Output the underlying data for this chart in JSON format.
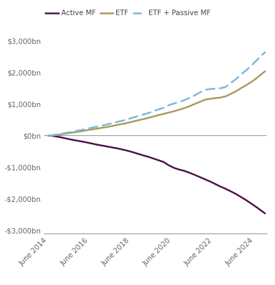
{
  "yticks": [
    -3000,
    -2000,
    -1000,
    0,
    1000,
    2000,
    3000
  ],
  "ytick_labels": [
    "-$3,000bn",
    "-$2,000bn",
    "-$1,000bn",
    "$0bn",
    "$1,000bn",
    "$2,000bn",
    "$3,000bn"
  ],
  "xtick_labels": [
    "June 2014",
    "June 2016",
    "June 2018",
    "June 2020",
    "June 2022",
    "June 2024"
  ],
  "xtick_positions": [
    2014.417,
    2016.417,
    2018.417,
    2020.417,
    2022.417,
    2024.417
  ],
  "active_mf_color": "#4B1248",
  "etf_color": "#A89A5A",
  "etf_passive_color": "#7AB8D8",
  "legend_labels": [
    "Active MF",
    "ETF",
    "ETF + Passive MF"
  ],
  "ylim": [
    -3100,
    3200
  ],
  "xlim": [
    2014.2,
    2025.0
  ],
  "active_mf_data": {
    "x": [
      2014.417,
      2014.583,
      2014.75,
      2015.0,
      2015.25,
      2015.5,
      2015.75,
      2016.0,
      2016.25,
      2016.5,
      2016.75,
      2017.0,
      2017.25,
      2017.5,
      2017.75,
      2018.0,
      2018.25,
      2018.5,
      2018.75,
      2019.0,
      2019.25,
      2019.5,
      2019.75,
      2020.0,
      2020.25,
      2020.5,
      2020.75,
      2021.0,
      2021.25,
      2021.5,
      2021.75,
      2022.0,
      2022.25,
      2022.5,
      2022.75,
      2023.0,
      2023.25,
      2023.5,
      2023.75,
      2024.0,
      2024.25,
      2024.5,
      2024.75,
      2024.917
    ],
    "y": [
      0,
      -8,
      -25,
      -55,
      -90,
      -125,
      -155,
      -185,
      -215,
      -250,
      -285,
      -315,
      -345,
      -375,
      -405,
      -440,
      -480,
      -525,
      -575,
      -625,
      -670,
      -725,
      -780,
      -835,
      -940,
      -1020,
      -1075,
      -1115,
      -1175,
      -1240,
      -1310,
      -1380,
      -1450,
      -1530,
      -1610,
      -1680,
      -1760,
      -1845,
      -1940,
      -2040,
      -2150,
      -2260,
      -2380,
      -2460
    ]
  },
  "etf_data": {
    "x": [
      2014.417,
      2014.583,
      2014.75,
      2015.0,
      2015.25,
      2015.5,
      2015.75,
      2016.0,
      2016.25,
      2016.5,
      2016.75,
      2017.0,
      2017.25,
      2017.5,
      2017.75,
      2018.0,
      2018.25,
      2018.5,
      2018.75,
      2019.0,
      2019.25,
      2019.5,
      2019.75,
      2020.0,
      2020.25,
      2020.5,
      2020.75,
      2021.0,
      2021.25,
      2021.5,
      2021.75,
      2022.0,
      2022.25,
      2022.5,
      2022.75,
      2023.0,
      2023.25,
      2023.5,
      2023.75,
      2024.0,
      2024.25,
      2024.5,
      2024.75,
      2024.917
    ],
    "y": [
      0,
      4,
      15,
      35,
      60,
      85,
      110,
      135,
      165,
      190,
      215,
      245,
      270,
      300,
      335,
      365,
      400,
      440,
      480,
      515,
      555,
      600,
      645,
      685,
      725,
      765,
      815,
      865,
      925,
      995,
      1060,
      1130,
      1160,
      1180,
      1200,
      1235,
      1315,
      1395,
      1495,
      1590,
      1690,
      1810,
      1940,
      2030
    ]
  },
  "etf_passive_data": {
    "x": [
      2014.417,
      2014.583,
      2014.75,
      2015.0,
      2015.25,
      2015.5,
      2015.75,
      2016.0,
      2016.25,
      2016.5,
      2016.75,
      2017.0,
      2017.25,
      2017.5,
      2017.75,
      2018.0,
      2018.25,
      2018.5,
      2018.75,
      2019.0,
      2019.25,
      2019.5,
      2019.75,
      2020.0,
      2020.25,
      2020.5,
      2020.75,
      2021.0,
      2021.25,
      2021.5,
      2021.75,
      2022.0,
      2022.25,
      2022.5,
      2022.75,
      2023.0,
      2023.25,
      2023.5,
      2023.75,
      2024.0,
      2024.25,
      2024.5,
      2024.75,
      2024.917
    ],
    "y": [
      0,
      6,
      22,
      48,
      80,
      115,
      145,
      175,
      210,
      245,
      278,
      315,
      348,
      388,
      430,
      468,
      515,
      565,
      615,
      660,
      708,
      768,
      825,
      875,
      960,
      1010,
      1060,
      1115,
      1185,
      1268,
      1358,
      1440,
      1468,
      1480,
      1492,
      1530,
      1655,
      1778,
      1928,
      2058,
      2205,
      2368,
      2530,
      2630
    ]
  },
  "background_color": "#FFFFFF",
  "axis_color": "#999999",
  "zero_line_color": "#999999"
}
